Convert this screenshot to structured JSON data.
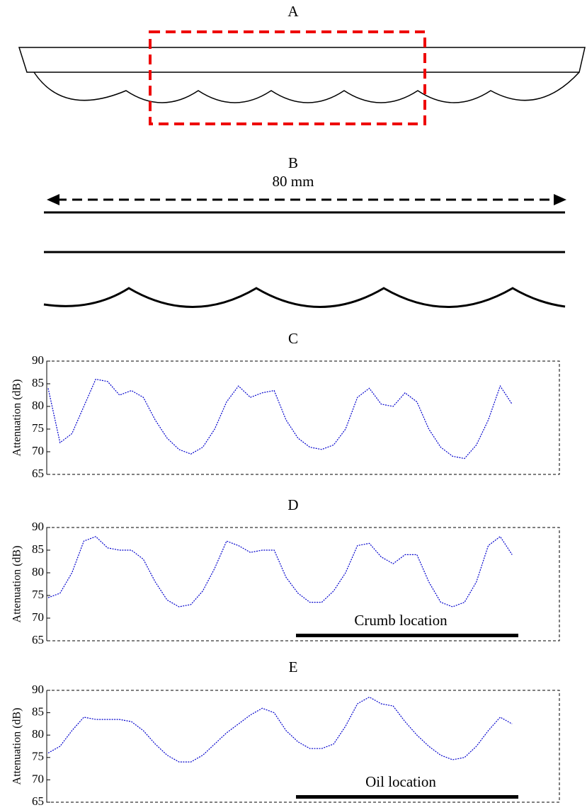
{
  "labels": {
    "panel_a": "A",
    "panel_b": "B",
    "dimension": "80 mm"
  },
  "chart_data": [
    {
      "type": "line",
      "title": "C",
      "ylabel": "Attenuation (dB)",
      "ylim": [
        65,
        90
      ],
      "yticks": [
        65,
        70,
        75,
        80,
        85,
        90
      ],
      "color": "#0000cc",
      "values": [
        84,
        72,
        74,
        80,
        86,
        85.5,
        82.5,
        83.5,
        82,
        77,
        73,
        70.5,
        69.5,
        71,
        75,
        81,
        84.5,
        82,
        83,
        83.5,
        77,
        73,
        71,
        70.5,
        71.5,
        75,
        82,
        84,
        80.5,
        80,
        83,
        81,
        75,
        71,
        69,
        68.5,
        71.5,
        77,
        84.5,
        80.5
      ]
    },
    {
      "type": "line",
      "title": "D",
      "ylabel": "Attenuation (dB)",
      "ylim": [
        65,
        90
      ],
      "yticks": [
        65,
        70,
        75,
        80,
        85,
        90
      ],
      "color": "#0000cc",
      "annotation": "Crumb location",
      "values": [
        74.5,
        75.5,
        80,
        87,
        88,
        85.5,
        85,
        85,
        83,
        78,
        74,
        72.5,
        73,
        76,
        81,
        87,
        86,
        84.5,
        85,
        85,
        79,
        75.5,
        73.5,
        73.5,
        76,
        80,
        86,
        86.5,
        83.5,
        82,
        84,
        84,
        78,
        73.5,
        72.5,
        73.5,
        78,
        86,
        88,
        84
      ]
    },
    {
      "type": "line",
      "title": "E",
      "ylabel": "Attenuation (dB)",
      "ylim": [
        65,
        90
      ],
      "yticks": [
        65,
        70,
        75,
        80,
        85,
        90
      ],
      "color": "#0000cc",
      "annotation": "Oil location",
      "values": [
        76,
        77.5,
        81,
        84,
        83.5,
        83.5,
        83.5,
        83,
        81,
        78,
        75.5,
        74,
        74,
        75.5,
        78,
        80.5,
        82.5,
        84.5,
        86,
        85,
        81,
        78.5,
        77,
        77,
        78,
        82,
        87,
        88.5,
        87,
        86.5,
        83,
        80,
        77.5,
        75.5,
        74.5,
        75,
        77.5,
        81,
        84,
        82.5
      ]
    }
  ]
}
